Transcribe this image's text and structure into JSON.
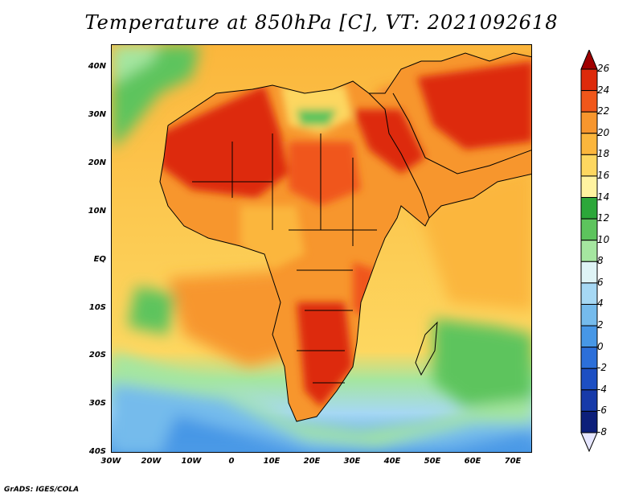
{
  "title": "Temperature at 850hPa [C], VT: 2021092618",
  "credit": "GrADS: IGES/COLA",
  "lat_labels": [
    "40N",
    "30N",
    "20N",
    "10N",
    "EQ",
    "10S",
    "20S",
    "30S",
    "40S"
  ],
  "lon_labels": [
    "30W",
    "20W",
    "10W",
    "0",
    "10E",
    "20E",
    "30E",
    "40E",
    "50E",
    "60E",
    "70E"
  ],
  "colorbar": {
    "labels": [
      "26",
      "24",
      "22",
      "20",
      "18",
      "16",
      "14",
      "12",
      "10",
      "8",
      "6",
      "4",
      "2",
      "0",
      "-2",
      "-4",
      "-6",
      "-8"
    ],
    "colors": [
      "#a00000",
      "#dd2a0b",
      "#f0571a",
      "#f7962d",
      "#fbb63c",
      "#fdd760",
      "#fff3a0",
      "#2ca73a",
      "#5dc45d",
      "#a5e6a0",
      "#dff4f6",
      "#a6d8f4",
      "#75bbec",
      "#4797e6",
      "#2c6fd9",
      "#1d4fc3",
      "#173aa9",
      "#0d1f7a",
      "#e6e6ff"
    ]
  }
}
